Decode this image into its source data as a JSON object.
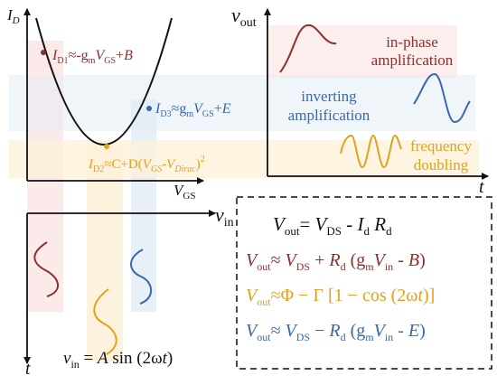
{
  "colors": {
    "red": "#8b2f2f",
    "orange": "#e0a21a",
    "blue": "#3a68a8",
    "band_red": "#fbe2e2",
    "band_orange": "#fdf0d8",
    "band_blue": "#e3ecf6"
  },
  "transfer_plot": {
    "y_label": "I",
    "y_label_sub": "D",
    "x_label": "V",
    "x_label_sub": "GS",
    "eq1": {
      "a": "I",
      "a_sub": "D1",
      "b": "≈-g",
      "b_sub": "m",
      "c": "V",
      "c_sub": "GS",
      "d": "+",
      "e": "B"
    },
    "eq3": {
      "a": "I",
      "a_sub": "D3",
      "b": "≈g",
      "b_sub": "m",
      "c": "V",
      "c_sub": "GS",
      "d": "+",
      "e": "E"
    },
    "eq2": {
      "a": "I",
      "a_sub": "D2",
      "b": "≈C+D(",
      "c": "V",
      "c_sub": "GS",
      "d": "-",
      "e": "V",
      "e_sub": "Dirac",
      "f": ")",
      "sup": "2"
    }
  },
  "output_plot": {
    "y_label": "v",
    "y_label_sub": "out",
    "x_label": "t",
    "inphase_line1": "in-phase",
    "inphase_line2": "amplification",
    "inverting_line1": "inverting",
    "inverting_line2": "amplification",
    "freq_line1": "frequency",
    "freq_line2": "doubling"
  },
  "input_plot": {
    "x_label": "v",
    "x_label_sub": "in",
    "y_label": "t",
    "eq": {
      "a": "v",
      "a_sub": "in",
      "b": " = ",
      "c": "A",
      "d": " sin (2ω",
      "e": "t",
      "f": ")"
    }
  },
  "equations_box": {
    "eq1": {
      "a": "V",
      "a_sub": "out",
      "b": "= ",
      "c": "V",
      "c_sub": "DS",
      "d": " - ",
      "e": "I",
      "e_sub": "d",
      "f": " R",
      "f_sub": "d"
    },
    "eq2": {
      "a": "V",
      "a_sub": "out",
      "b": "≈ ",
      "c": "V",
      "c_sub": "DS",
      "d": " + ",
      "e": "R",
      "e_sub": "d",
      "f": " (g",
      "f_sub": "m",
      "g": "V",
      "g_sub": "in",
      "h": " - ",
      "i": "B",
      "j": ")"
    },
    "eq3": {
      "a": "V",
      "a_sub": "out",
      "b": "≈Φ − Γ [1 − cos (2ω",
      "c": "t",
      "d": ")]"
    },
    "eq4": {
      "a": "V",
      "a_sub": "out",
      "b": "≈ ",
      "c": "V",
      "c_sub": "DS",
      "d": " − ",
      "e": "R",
      "e_sub": "d",
      "f": " (g",
      "f_sub": "m",
      "g": "V",
      "g_sub": "in",
      "h": " - ",
      "i": "E",
      "j": ")"
    }
  }
}
